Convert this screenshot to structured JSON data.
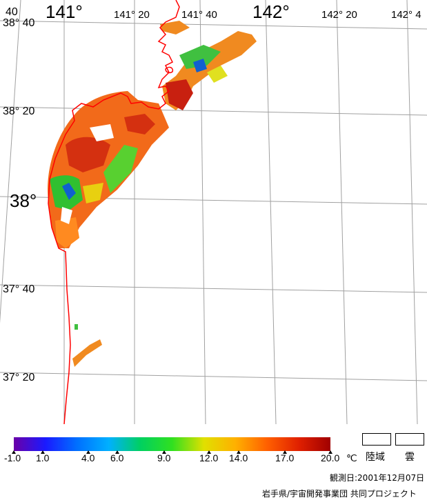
{
  "map": {
    "grid_color": "#a0a0a0",
    "coast_color": "#ff0000",
    "lon_labels": {
      "l140_40": "40",
      "l141": "141°",
      "l141_20": "141° 20",
      "l141_40": "141° 40",
      "l142": "142°",
      "l142_20": "142° 20",
      "l142_40": "142° 4"
    },
    "lat_labels": {
      "l38_40": "38° 40",
      "l38_20": "38° 20",
      "l38": "38°",
      "l37_40": "37° 40",
      "l37_20": "37° 20"
    }
  },
  "colorbar": {
    "gradient_colors": [
      "#6a00a8",
      "#1a1aff",
      "#0070ff",
      "#00b0ff",
      "#00d060",
      "#30e020",
      "#e0e000",
      "#ffb000",
      "#ff6000",
      "#e02000",
      "#a00000"
    ],
    "ticks": [
      "-1.0",
      "1.0",
      "4.0",
      "6.0",
      "9.0",
      "12.0",
      "14.0",
      "17.0",
      "20.0"
    ],
    "unit": "℃"
  },
  "legend": {
    "land_label": "陸域",
    "cloud_label": "雲"
  },
  "footer": {
    "observation_date": "観測日:2001年12月07日",
    "organization": "岩手県/宇宙開発事業団 共同プロジェクト"
  }
}
